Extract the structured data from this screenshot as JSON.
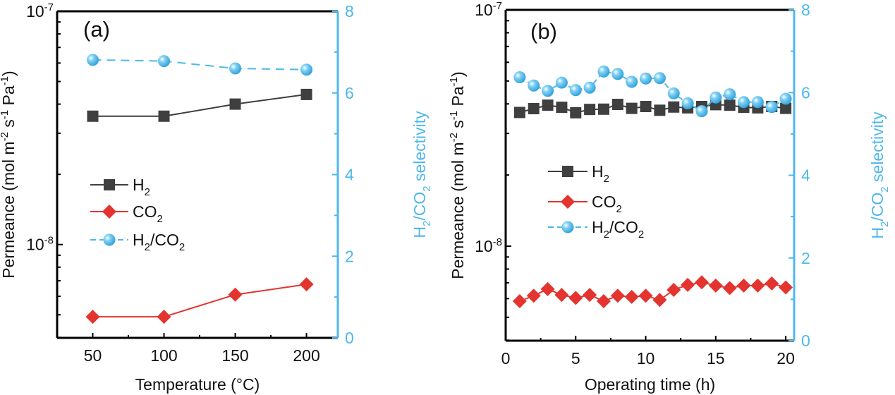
{
  "colors": {
    "h2": "#3f3f3f",
    "co2": "#e3342f",
    "selectivity": "#4db8ea",
    "axis": "#000000"
  },
  "chart_data": [
    {
      "type": "line",
      "panel_label": "(a)",
      "xlabel": [
        {
          "t": "Temperature (°C)"
        }
      ],
      "ylabel": [
        {
          "t": "Permeance (mol m"
        },
        {
          "t": "-2",
          "sup": true
        },
        {
          "t": " s"
        },
        {
          "t": "-1",
          "sup": true
        },
        {
          "t": " Pa"
        },
        {
          "t": "-1",
          "sup": true
        },
        {
          "t": ")"
        }
      ],
      "y2label": [
        {
          "t": "H"
        },
        {
          "t": "2",
          "sub": true
        },
        {
          "t": "/CO"
        },
        {
          "t": "2",
          "sub": true
        },
        {
          "t": " selectivity"
        }
      ],
      "xlim": [
        25,
        222
      ],
      "ylim_log10": [
        -8.4,
        -7
      ],
      "y2lim": [
        0,
        8
      ],
      "xticks": [
        50,
        100,
        150,
        200
      ],
      "xminor": [
        75,
        125,
        175
      ],
      "yticks": [
        {
          "base": "10",
          "exp": "-7",
          "value": -7
        },
        {
          "base": "10",
          "exp": "-8",
          "value": -8
        }
      ],
      "y2ticks": [
        0,
        2,
        4,
        6,
        8
      ],
      "y2minor": [
        1,
        3,
        5,
        7
      ],
      "x": [
        50,
        100,
        150,
        200
      ],
      "series": [
        {
          "key": "h2",
          "name": [
            {
              "t": "H"
            },
            {
              "t": "2",
              "sub": true
            }
          ],
          "axis": "left",
          "marker": "square",
          "dash": false,
          "values": [
            3.55e-08,
            3.55e-08,
            4e-08,
            4.4e-08
          ]
        },
        {
          "key": "co2",
          "name": [
            {
              "t": "CO"
            },
            {
              "t": "2",
              "sub": true
            }
          ],
          "axis": "left",
          "marker": "diamond",
          "dash": false,
          "values": [
            4.9e-09,
            4.9e-09,
            6.1e-09,
            6.75e-09
          ]
        },
        {
          "key": "selectivity",
          "name": [
            {
              "t": "H"
            },
            {
              "t": "2",
              "sub": true
            },
            {
              "t": "/CO"
            },
            {
              "t": "2",
              "sub": true
            }
          ],
          "axis": "right",
          "marker": "sphere",
          "dash": true,
          "values": [
            6.81,
            6.78,
            6.6,
            6.57
          ]
        }
      ],
      "legend_position": "center-left"
    },
    {
      "type": "line",
      "panel_label": "(b)",
      "xlabel": [
        {
          "t": "Operating time (h)"
        }
      ],
      "ylabel": [
        {
          "t": "Permeance (mol m"
        },
        {
          "t": "-2",
          "sup": true
        },
        {
          "t": " s"
        },
        {
          "t": "-1",
          "sup": true
        },
        {
          "t": " Pa"
        },
        {
          "t": "-1",
          "sup": true
        },
        {
          "t": ")"
        }
      ],
      "y2label": [
        {
          "t": "H"
        },
        {
          "t": "2",
          "sub": true
        },
        {
          "t": "/CO"
        },
        {
          "t": "2",
          "sub": true
        },
        {
          "t": " selectivity"
        }
      ],
      "xlim": [
        0,
        20.6
      ],
      "ylim_log10": [
        -8.4,
        -7
      ],
      "y2lim": [
        0,
        8
      ],
      "xticks": [
        0,
        5,
        10,
        15,
        20
      ],
      "xminor": [
        2.5,
        7.5,
        12.5,
        17.5
      ],
      "yticks": [
        {
          "base": "10",
          "exp": "-7",
          "value": -7
        },
        {
          "base": "10",
          "exp": "-8",
          "value": -8
        }
      ],
      "y2ticks": [
        0,
        2,
        4,
        6,
        8
      ],
      "y2minor": [
        1,
        3,
        5,
        7
      ],
      "x": [
        1,
        2,
        3,
        4,
        5,
        6,
        7,
        8,
        9,
        10,
        11,
        12,
        13,
        14,
        15,
        16,
        17,
        18,
        19,
        20
      ],
      "series": [
        {
          "key": "h2",
          "name": [
            {
              "t": "H"
            },
            {
              "t": "2",
              "sub": true
            }
          ],
          "axis": "left",
          "marker": "square",
          "dash": false,
          "values": [
            3.68e-08,
            3.82e-08,
            3.95e-08,
            3.87e-08,
            3.67e-08,
            3.79e-08,
            3.8e-08,
            3.98e-08,
            3.83e-08,
            3.9e-08,
            3.76e-08,
            3.88e-08,
            3.85e-08,
            3.9e-08,
            3.97e-08,
            3.95e-08,
            3.87e-08,
            3.85e-08,
            3.9e-08,
            3.83e-08
          ]
        },
        {
          "key": "co2",
          "name": [
            {
              "t": "CO"
            },
            {
              "t": "2",
              "sub": true
            }
          ],
          "axis": "left",
          "marker": "diamond",
          "dash": false,
          "values": [
            5.85e-09,
            6.17e-09,
            6.58e-09,
            6.22e-09,
            6.04e-09,
            6.22e-09,
            5.85e-09,
            6.17e-09,
            6.1e-09,
            6.17e-09,
            5.92e-09,
            6.53e-09,
            6.86e-09,
            7.03e-09,
            6.81e-09,
            6.65e-09,
            6.81e-09,
            6.81e-09,
            6.95e-09,
            6.69e-09
          ]
        },
        {
          "key": "selectivity",
          "name": [
            {
              "t": "H"
            },
            {
              "t": "2",
              "sub": true
            },
            {
              "t": "/CO"
            },
            {
              "t": "2",
              "sub": true
            }
          ],
          "axis": "right",
          "marker": "sphere",
          "dash": true,
          "values": [
            6.37,
            6.17,
            6.04,
            6.24,
            6.06,
            6.12,
            6.51,
            6.45,
            6.26,
            6.34,
            6.35,
            5.98,
            5.74,
            5.55,
            5.88,
            5.96,
            5.77,
            5.77,
            5.65,
            5.85
          ]
        }
      ],
      "legend_position": "center-left"
    }
  ]
}
